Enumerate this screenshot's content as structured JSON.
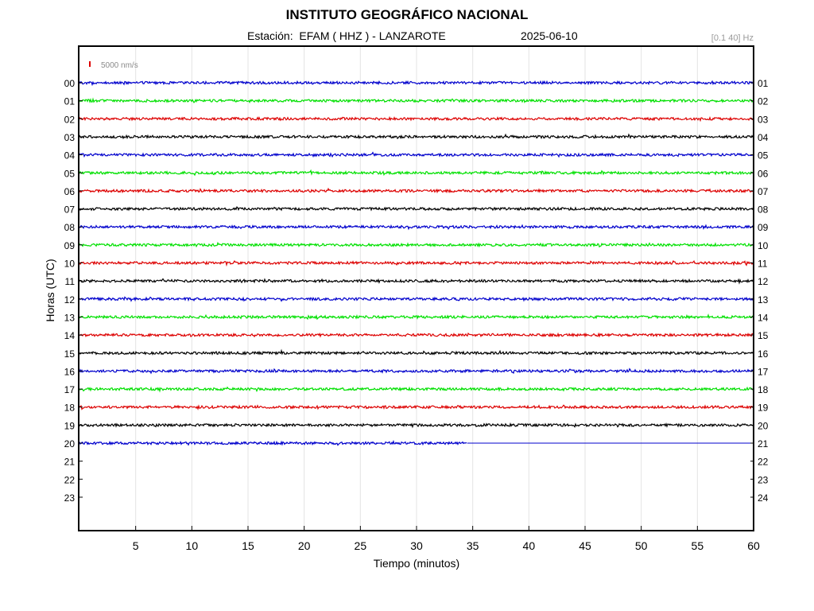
{
  "header": {
    "title": "INSTITUTO GEOGRÁFICO NACIONAL",
    "station": "Estación:  EFAM ( HHZ ) - LANZAROTE",
    "date": "2025-06-10",
    "filter": "[0.1 40] Hz"
  },
  "chart_data": {
    "type": "line",
    "title": "INSTITUTO GEOGRÁFICO NACIONAL",
    "xlabel": "Tiempo (minutos)",
    "ylabel": "Horas (UTC)",
    "xlim": [
      0,
      60
    ],
    "x_ticks": [
      5,
      10,
      15,
      20,
      25,
      30,
      35,
      40,
      45,
      50,
      55,
      60
    ],
    "left_hour_labels": [
      "00",
      "01",
      "02",
      "03",
      "04",
      "05",
      "06",
      "07",
      "08",
      "09",
      "10",
      "11",
      "12",
      "13",
      "14",
      "15",
      "16",
      "17",
      "18",
      "19",
      "20",
      "21",
      "22",
      "23"
    ],
    "right_hour_labels": [
      "01",
      "02",
      "03",
      "04",
      "05",
      "06",
      "07",
      "08",
      "09",
      "10",
      "11",
      "12",
      "13",
      "14",
      "15",
      "16",
      "17",
      "18",
      "19",
      "20",
      "21",
      "22",
      "23",
      "24"
    ],
    "scale_bar_label": "5000 nm/s",
    "grid": true,
    "trace_colors": [
      "#0000cc",
      "#00e000",
      "#dd0000",
      "#000000"
    ],
    "traces_recorded_hours": 21,
    "last_trace_end_minute": 34.5,
    "last_trace_flat_until": 60
  }
}
